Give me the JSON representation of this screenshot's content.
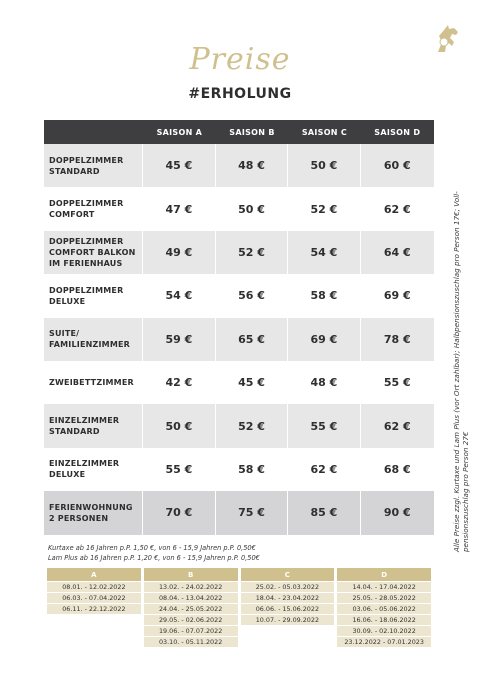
{
  "header": {
    "title": "Preise",
    "subtitle": "#ERHOLUNG"
  },
  "price_table": {
    "columns": [
      "SAISON A",
      "SAISON B",
      "SAISON C",
      "SAISON D"
    ],
    "rows": [
      {
        "room": [
          "DOPPELZIMMER",
          "STANDARD"
        ],
        "prices": [
          "45 €",
          "48 €",
          "50 €",
          "60 €"
        ]
      },
      {
        "room": [
          "DOPPELZIMMER",
          "COMFORT"
        ],
        "prices": [
          "47 €",
          "50 €",
          "52 €",
          "62 €"
        ]
      },
      {
        "room": [
          "DOPPELZIMMER",
          "COMFORT BALKON",
          "IM FERIENHAUS"
        ],
        "prices": [
          "49 €",
          "52 €",
          "54 €",
          "64 €"
        ]
      },
      {
        "room": [
          "DOPPELZIMMER",
          "DELUXE"
        ],
        "prices": [
          "54 €",
          "56 €",
          "58 €",
          "69 €"
        ]
      },
      {
        "room": [
          "SUITE/",
          "FAMILIENZIMMER"
        ],
        "prices": [
          "59 €",
          "65 €",
          "69 €",
          "78 €"
        ]
      },
      {
        "room": [
          "ZWEIBETTZIMMER"
        ],
        "prices": [
          "42 €",
          "45 €",
          "48 €",
          "55 €"
        ]
      },
      {
        "room": [
          "EINZELZIMMER",
          "STANDARD"
        ],
        "prices": [
          "50 €",
          "52 €",
          "55 €",
          "62 €"
        ]
      },
      {
        "room": [
          "EINZELZIMMER",
          "DELUXE"
        ],
        "prices": [
          "55 €",
          "58 €",
          "62 €",
          "68 €"
        ]
      },
      {
        "room": [
          "FERIENWOHNUNG",
          "2 PERSONEN"
        ],
        "prices": [
          "70 €",
          "75 €",
          "85 €",
          "90 €"
        ]
      }
    ]
  },
  "side_note": {
    "line1": "Alle Preise zzgl. Kurtaxe und Lam Plus (vor Ort zahlbar); Halbpensionszuschlag pro Person 17€; Voll-",
    "line2": "pensionszuschlag pro Person 27€"
  },
  "footnotes": {
    "kurtaxe": "Kurtaxe ab 16 Jahren p.P. 1,50 €, von 6 - 15,9 Jahren p.P. 0,50€",
    "lamplus": "Lam Plus ab 16 Jahren p.P. 1,20 €, von 6 - 15,9 Jahren p.P. 0,50€"
  },
  "season_table": {
    "headers": [
      "A",
      "B",
      "C",
      "D"
    ],
    "rows": [
      [
        "08.01. - 12.02.2022",
        "13.02. - 24.02.2022",
        "25.02. - 05.03.2022",
        "14.04. - 17.04.2022"
      ],
      [
        "06.03. - 07.04.2022",
        "08.04. - 13.04.2022",
        "18.04. - 23.04.2022",
        "25.05. - 28.05.2022"
      ],
      [
        "06.11. - 22.12.2022",
        "24.04. - 25.05.2022",
        "06.06. - 15.06.2022",
        "03.06. - 05.06.2022"
      ],
      [
        "",
        "29.05. - 02.06.2022",
        "10.07. - 29.09.2022",
        "16.06. - 18.06.2022"
      ],
      [
        "",
        "19.06. - 07.07.2022",
        "",
        "30.09. - 02.10.2022"
      ],
      [
        "",
        "03.10. - 05.11.2022",
        "",
        "23.12.2022 - 07.01.2023"
      ]
    ]
  },
  "colors": {
    "gold": "#cfc08e",
    "header_dark": "#3e3e40",
    "row_shade": "#e7e7e8"
  },
  "icons": {
    "logo": "horse-logo-icon"
  }
}
